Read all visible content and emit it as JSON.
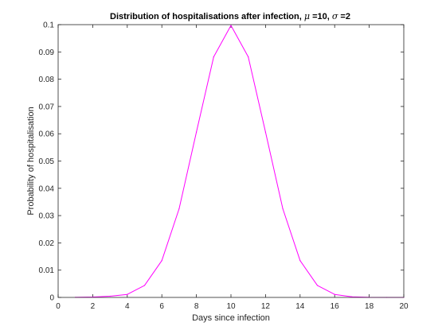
{
  "chart_data": {
    "type": "line",
    "title": {
      "prefix": "Distribution of hospitalisations after infection, ",
      "mu_symbol": "μ",
      "mu_text": " =10, ",
      "sigma_symbol": "σ",
      "sigma_text": " =2"
    },
    "xlabel": "Days since infection",
    "ylabel": "Probability of hospitalisation",
    "xlim": [
      0,
      20
    ],
    "ylim": [
      0,
      0.1
    ],
    "xticks": [
      "0",
      "2",
      "4",
      "6",
      "8",
      "10",
      "12",
      "14",
      "16",
      "18",
      "20"
    ],
    "yticks": [
      "0",
      "0.01",
      "0.02",
      "0.03",
      "0.04",
      "0.05",
      "0.06",
      "0.07",
      "0.08",
      "0.09",
      "0.1"
    ],
    "grid": false,
    "box": true,
    "series": [
      {
        "color": "#ff00ff",
        "x": [
          1,
          2,
          3,
          4,
          5,
          6,
          7,
          8,
          9,
          10,
          11,
          12,
          13,
          14,
          15,
          16,
          17,
          18,
          19,
          20
        ],
        "y": [
          4e-05,
          0.00015,
          0.00044,
          0.0011,
          0.0044,
          0.0135,
          0.0325,
          0.0606,
          0.0882,
          0.0997,
          0.0882,
          0.0606,
          0.0325,
          0.0135,
          0.0044,
          0.0011,
          0.00022,
          3e-05,
          1e-05,
          0.0
        ]
      }
    ]
  }
}
